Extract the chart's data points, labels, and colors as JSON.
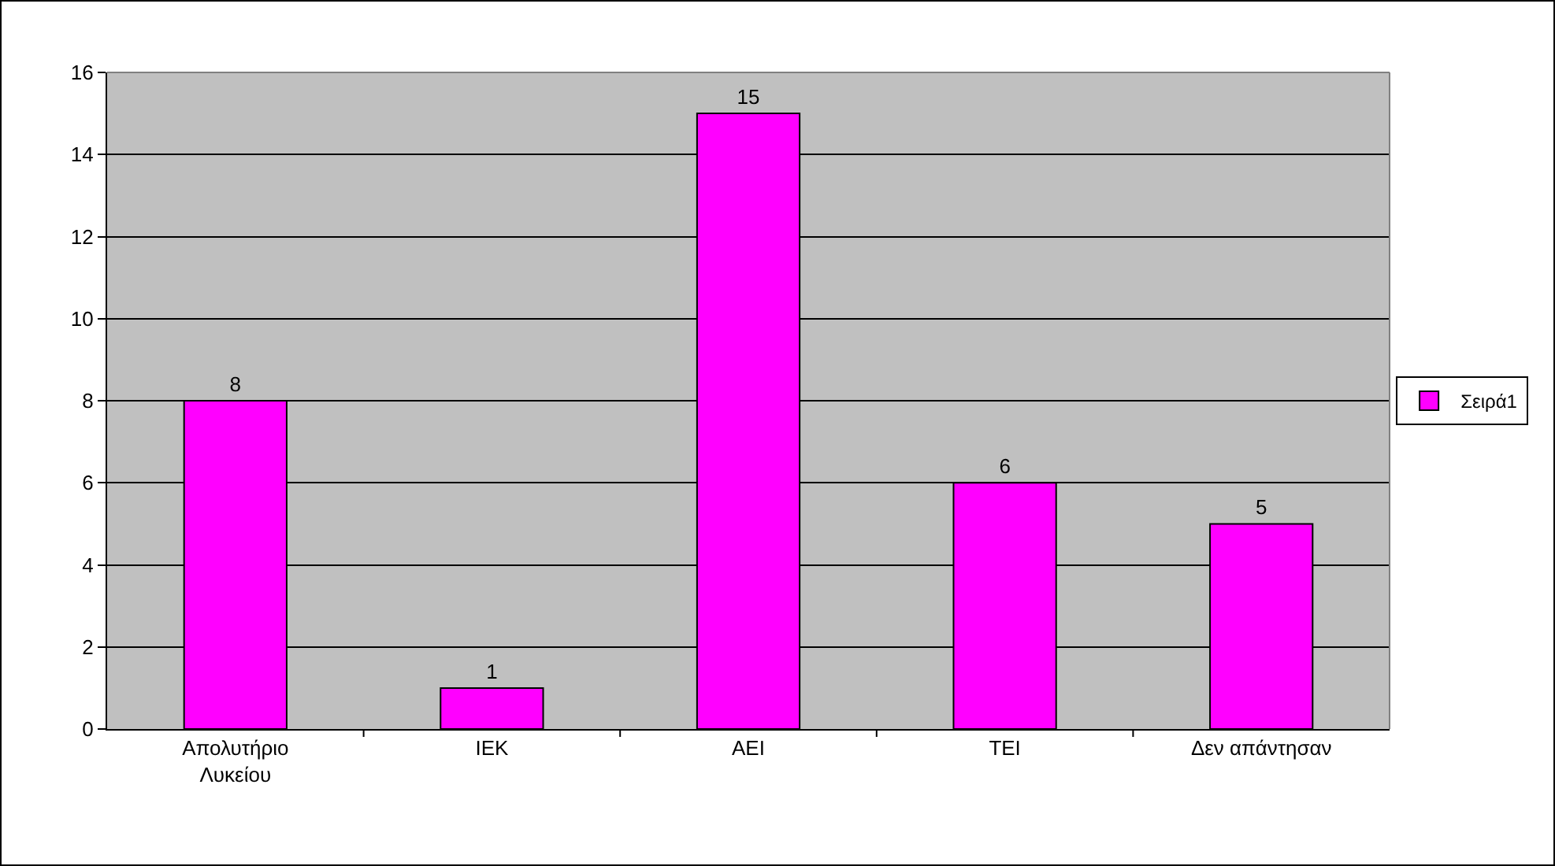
{
  "chart_data": {
    "type": "bar",
    "categories": [
      "Απολυτήριο Λυκείου",
      "ΙΕΚ",
      "ΑΕΙ",
      "ΤΕΙ",
      "Δεν απάντησαν"
    ],
    "series": [
      {
        "name": "Σειρά1",
        "color": "#ff00ff",
        "values": [
          8,
          1,
          15,
          6,
          5
        ]
      }
    ],
    "ylim": [
      0,
      16
    ],
    "yticks": [
      0,
      2,
      4,
      6,
      8,
      10,
      12,
      14,
      16
    ],
    "grid": "y",
    "legend": "right",
    "data_labels": true
  }
}
